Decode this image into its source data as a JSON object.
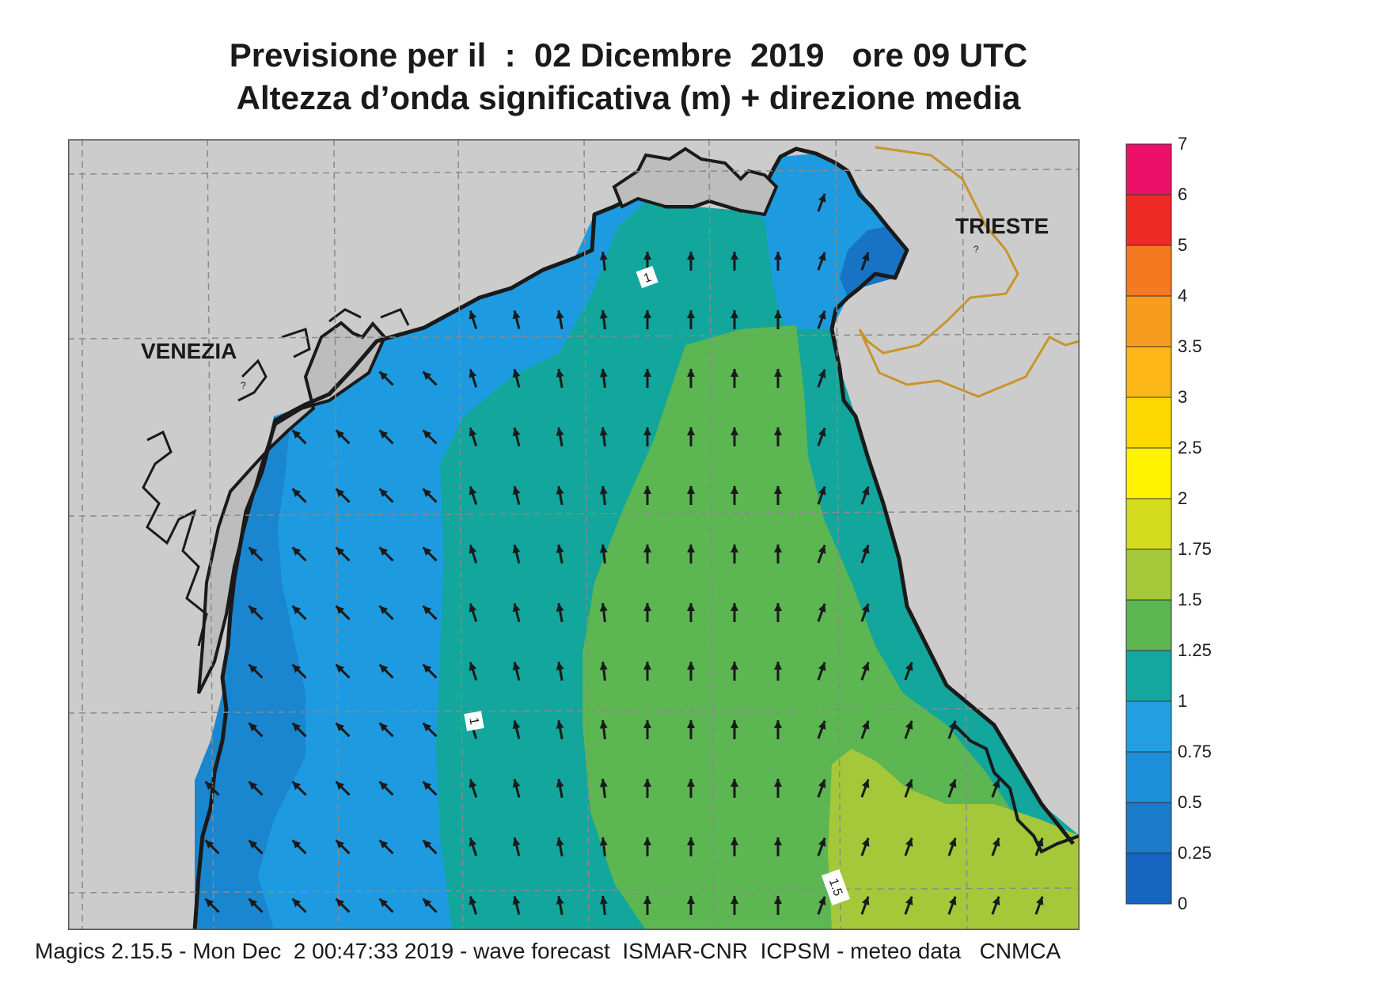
{
  "title": {
    "line1": "Previsione per il  :  02 Dicembre  2019   ore 09 UTC",
    "line2": "Altezza d’onda significativa (m) + direzione media"
  },
  "map": {
    "region": "Golfo di Trieste / Alto Adriatico",
    "cities": [
      {
        "name": "VENEZIA",
        "marker": "?"
      },
      {
        "name": "TRIESTE",
        "marker": "?"
      }
    ],
    "contour_labels": [
      {
        "label": "1"
      },
      {
        "label": "1"
      },
      {
        "label": "1.5"
      }
    ],
    "land_color": "#cccccc",
    "coast_color": "#1a1a1a",
    "border_color": "#c8952c",
    "arrow_color": "#1a1a1a"
  },
  "legend": {
    "levels": [
      "0",
      "0.25",
      "0.5",
      "0.75",
      "1",
      "1.25",
      "1.5",
      "1.75",
      "2",
      "2.5",
      "3",
      "3.5",
      "4",
      "5",
      "6",
      "7"
    ],
    "colors": [
      "#1565c0",
      "#1b7ccc",
      "#1e8fda",
      "#229fe2",
      "#14a7a0",
      "#5cb652",
      "#a4c83a",
      "#d4dc20",
      "#fff200",
      "#fed900",
      "#fcb716",
      "#f89c1f",
      "#f47920",
      "#ee2a24",
      "#ec1068"
    ],
    "unit": "m"
  },
  "footer": "Magics 2.15.5 - Mon Dec  2 00:47:33 2019 - wave forecast  ISMAR-CNR  ICPSM - meteo data   CNMCA"
}
